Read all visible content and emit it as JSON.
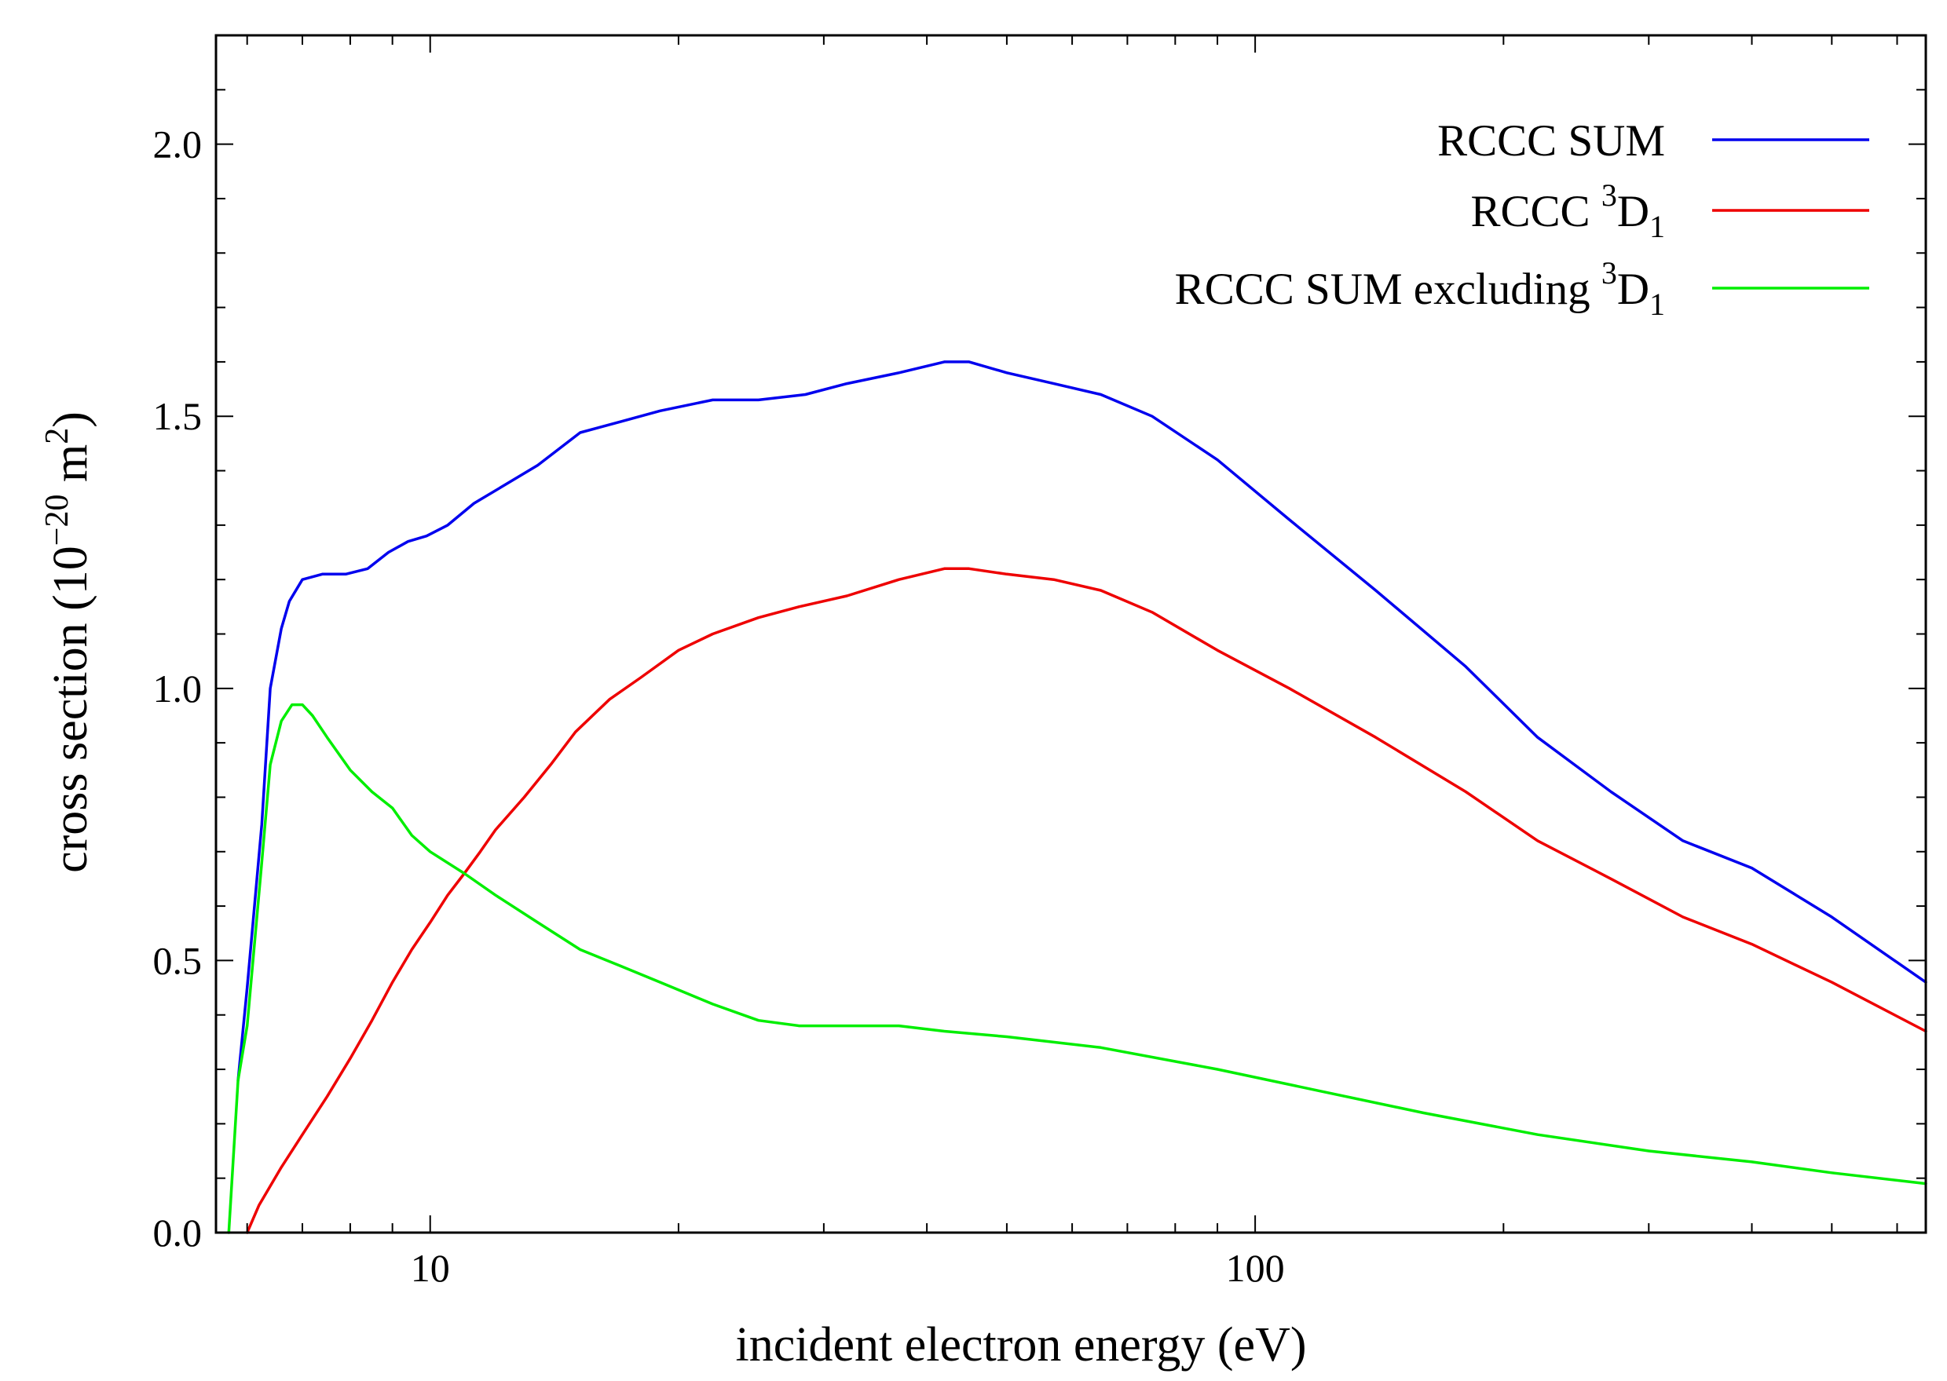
{
  "chart_data": {
    "type": "line",
    "xscale": "log",
    "xlim": [
      5.5,
      650
    ],
    "ylim": [
      0.0,
      2.2
    ],
    "xlabel": "incident electron energy (eV)",
    "ylabel": {
      "base": "cross section (10",
      "exp": "−20",
      "unit": " m",
      "unit_exp": "2",
      "close": ")"
    },
    "x_ticks": [
      {
        "value": 10,
        "label": "10"
      },
      {
        "value": 100,
        "label": "100"
      }
    ],
    "y_ticks": [
      {
        "value": 0.0,
        "label": "0.0"
      },
      {
        "value": 0.5,
        "label": "0.5"
      },
      {
        "value": 1.0,
        "label": "1.0"
      },
      {
        "value": 1.5,
        "label": "1.5"
      },
      {
        "value": 2.0,
        "label": "2.0"
      }
    ],
    "grid": false,
    "legend_position": "top-right",
    "series": [
      {
        "name": "RCCC SUM",
        "legend": {
          "prefix": "RCCC SUM",
          "sup": "",
          "main": "",
          "sub": ""
        },
        "color": "#0000ee",
        "x": [
          5.85,
          6.0,
          6.25,
          6.4,
          6.6,
          6.75,
          7.0,
          7.4,
          7.9,
          8.4,
          8.9,
          9.4,
          9.9,
          10.5,
          11.3,
          12.2,
          13.5,
          15.2,
          17.0,
          19.0,
          22.0,
          25.0,
          28.5,
          32.0,
          37.0,
          42.0,
          45.0,
          50.0,
          57.0,
          65.0,
          75.0,
          90.0,
          110.0,
          140.0,
          180.0,
          220.0,
          270.0,
          330.0,
          400.0,
          500.0,
          650.0
        ],
        "y": [
          0.28,
          0.45,
          0.75,
          1.0,
          1.11,
          1.16,
          1.2,
          1.21,
          1.21,
          1.22,
          1.25,
          1.27,
          1.28,
          1.3,
          1.34,
          1.37,
          1.41,
          1.47,
          1.49,
          1.51,
          1.53,
          1.53,
          1.54,
          1.56,
          1.58,
          1.6,
          1.6,
          1.58,
          1.56,
          1.54,
          1.5,
          1.42,
          1.31,
          1.18,
          1.04,
          0.91,
          0.81,
          0.72,
          0.67,
          0.58,
          0.46
        ]
      },
      {
        "name": "RCCC 3D1",
        "legend": {
          "prefix": "RCCC ",
          "sup": "3",
          "main": "D",
          "sub": "1"
        },
        "color": "#ee0000",
        "x": [
          6.0,
          6.2,
          6.6,
          7.0,
          7.5,
          8.0,
          8.5,
          9.0,
          9.5,
          10.0,
          10.5,
          11.0,
          11.5,
          12.0,
          13.0,
          14.0,
          15.0,
          16.5,
          18.0,
          20.0,
          22.0,
          25.0,
          28.0,
          32.0,
          37.0,
          42.0,
          45.0,
          50.0,
          57.0,
          65.0,
          75.0,
          90.0,
          110.0,
          140.0,
          180.0,
          220.0,
          270.0,
          330.0,
          400.0,
          500.0,
          650.0
        ],
        "y": [
          0.0,
          0.05,
          0.12,
          0.18,
          0.25,
          0.32,
          0.39,
          0.46,
          0.52,
          0.57,
          0.62,
          0.66,
          0.7,
          0.74,
          0.8,
          0.86,
          0.92,
          0.98,
          1.02,
          1.07,
          1.1,
          1.13,
          1.15,
          1.17,
          1.2,
          1.22,
          1.22,
          1.21,
          1.2,
          1.18,
          1.14,
          1.07,
          1.0,
          0.91,
          0.81,
          0.72,
          0.65,
          0.58,
          0.53,
          0.46,
          0.37
        ]
      },
      {
        "name": "RCCC SUM excluding 3D1",
        "legend": {
          "prefix": "RCCC SUM excluding ",
          "sup": "3",
          "main": "D",
          "sub": "1"
        },
        "color": "#00ee00",
        "x": [
          5.7,
          5.85,
          6.0,
          6.25,
          6.4,
          6.6,
          6.8,
          7.0,
          7.2,
          7.5,
          8.0,
          8.5,
          9.0,
          9.5,
          10.0,
          11.0,
          12.0,
          13.5,
          15.2,
          17.0,
          19.0,
          22.0,
          25.0,
          28.0,
          32.0,
          37.0,
          42.0,
          50.0,
          65.0,
          90.0,
          120.0,
          160.0,
          220.0,
          300.0,
          400.0,
          500.0,
          650.0
        ],
        "y": [
          0.0,
          0.28,
          0.38,
          0.68,
          0.86,
          0.94,
          0.97,
          0.97,
          0.95,
          0.91,
          0.85,
          0.81,
          0.78,
          0.73,
          0.7,
          0.66,
          0.62,
          0.57,
          0.52,
          0.49,
          0.46,
          0.42,
          0.39,
          0.38,
          0.38,
          0.38,
          0.37,
          0.36,
          0.34,
          0.3,
          0.26,
          0.22,
          0.18,
          0.15,
          0.13,
          0.11,
          0.09
        ]
      }
    ]
  }
}
